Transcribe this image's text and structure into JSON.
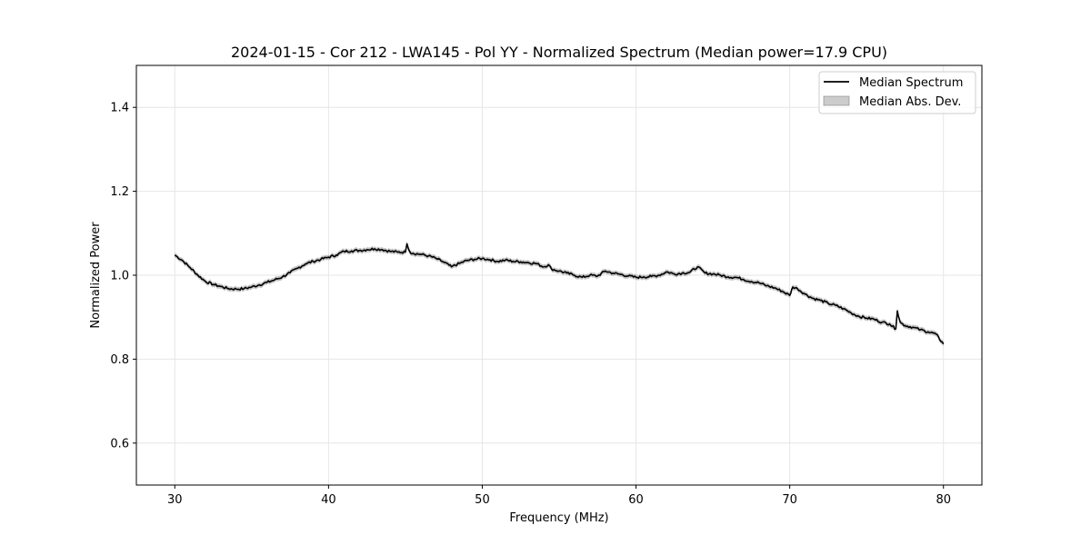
{
  "chart_data": {
    "type": "line",
    "title": "2024-01-15 - Cor 212 - LWA145 - Pol YY - Normalized Spectrum (Median power=17.9 CPU)",
    "xlabel": "Frequency (MHz)",
    "ylabel": "Normalized Power",
    "xlim": [
      27.5,
      82.5
    ],
    "ylim": [
      0.5,
      1.5
    ],
    "xticks": [
      30,
      40,
      50,
      60,
      70,
      80
    ],
    "yticks": [
      0.6,
      0.8,
      1.0,
      1.2,
      1.4
    ],
    "xtick_labels": [
      "30",
      "40",
      "50",
      "60",
      "70",
      "80"
    ],
    "ytick_labels": [
      "0.6",
      "0.8",
      "1.0",
      "1.2",
      "1.4"
    ],
    "grid": true,
    "legend": {
      "position": "top-right",
      "entries": [
        "Median Spectrum",
        "Median Abs. Dev."
      ]
    },
    "series": [
      {
        "name": "Median Spectrum",
        "color": "#000000",
        "x": [
          30,
          30.5,
          31,
          31.5,
          32,
          32.5,
          33,
          33.5,
          34,
          34.5,
          35,
          35.5,
          36,
          36.5,
          37,
          37.5,
          38,
          38.5,
          39,
          39.5,
          40,
          40.5,
          41,
          41.5,
          42,
          42.5,
          43,
          43.5,
          44,
          44.5,
          45,
          45.1,
          45.3,
          45.5,
          46,
          46.5,
          47,
          47.5,
          48,
          48.5,
          49,
          49.5,
          50,
          50.5,
          51,
          51.5,
          52,
          52.5,
          53,
          53.5,
          54,
          54.3,
          54.5,
          55,
          55.5,
          56,
          56.5,
          57,
          57.5,
          58,
          58.5,
          59,
          59.5,
          60,
          60.5,
          61,
          61.5,
          62,
          62.5,
          63,
          63.5,
          64,
          64.5,
          65,
          65.5,
          66,
          66.5,
          67,
          67.5,
          68,
          68.5,
          69,
          69.5,
          70,
          70.2,
          70.5,
          71,
          71.5,
          72,
          72.5,
          73,
          73.5,
          74,
          74.5,
          75,
          75.5,
          76,
          76.5,
          76.9,
          77,
          77.2,
          77.5,
          78,
          78.5,
          79,
          79.5,
          80
        ],
        "values": [
          1.048,
          1.035,
          1.018,
          1.0,
          0.985,
          0.978,
          0.973,
          0.968,
          0.967,
          0.968,
          0.972,
          0.977,
          0.983,
          0.989,
          0.996,
          1.006,
          1.017,
          1.027,
          1.033,
          1.038,
          1.043,
          1.048,
          1.057,
          1.058,
          1.059,
          1.061,
          1.063,
          1.061,
          1.057,
          1.055,
          1.055,
          1.075,
          1.055,
          1.052,
          1.05,
          1.046,
          1.04,
          1.031,
          1.02,
          1.028,
          1.035,
          1.038,
          1.04,
          1.037,
          1.033,
          1.036,
          1.033,
          1.032,
          1.03,
          1.028,
          1.02,
          1.025,
          1.015,
          1.01,
          1.005,
          1.0,
          0.995,
          1.0,
          0.998,
          1.01,
          1.005,
          1.002,
          0.998,
          0.995,
          0.996,
          0.997,
          1.0,
          1.008,
          1.003,
          1.005,
          1.007,
          1.02,
          1.005,
          1.003,
          1.0,
          0.996,
          0.995,
          0.99,
          0.985,
          0.982,
          0.975,
          0.97,
          0.962,
          0.952,
          0.972,
          0.968,
          0.955,
          0.945,
          0.94,
          0.933,
          0.928,
          0.92,
          0.91,
          0.902,
          0.898,
          0.895,
          0.888,
          0.884,
          0.872,
          0.915,
          0.887,
          0.88,
          0.876,
          0.87,
          0.865,
          0.86,
          0.836
        ]
      },
      {
        "name": "Median Abs. Dev.",
        "color": "#808080",
        "mad": 0.006
      }
    ]
  }
}
